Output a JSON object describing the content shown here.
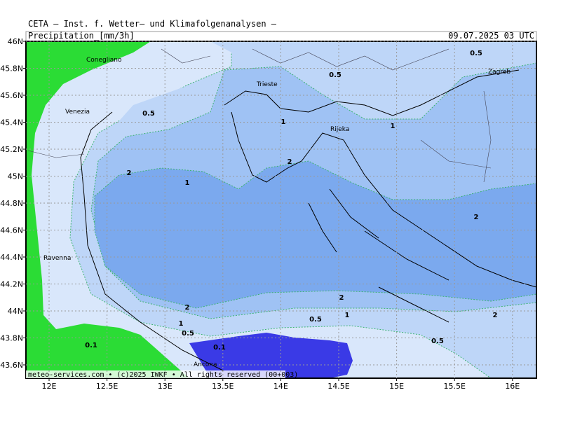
{
  "header": {
    "title": "CETA – Inst. f. Wetter– und Klimafolgenanalysen –",
    "variable": "Precipitation_[mm/3h]",
    "valid_time": "09.07.2025 03 UTC"
  },
  "map": {
    "lat_ticks": [
      {
        "value": 46,
        "label": "46N"
      },
      {
        "value": 45.8,
        "label": "45.8N"
      },
      {
        "value": 45.6,
        "label": "45.6N"
      },
      {
        "value": 45.4,
        "label": "45.4N"
      },
      {
        "value": 45.2,
        "label": "45.2N"
      },
      {
        "value": 45,
        "label": "45N"
      },
      {
        "value": 44.8,
        "label": "44.8N"
      },
      {
        "value": 44.6,
        "label": "44.6N"
      },
      {
        "value": 44.4,
        "label": "44.4N"
      },
      {
        "value": 44.2,
        "label": "44.2N"
      },
      {
        "value": 44,
        "label": "44N"
      },
      {
        "value": 43.8,
        "label": "43.8N"
      },
      {
        "value": 43.6,
        "label": "43.6N"
      }
    ],
    "lon_ticks": [
      {
        "value": 12,
        "label": "12E"
      },
      {
        "value": 12.5,
        "label": "12.5E"
      },
      {
        "value": 13,
        "label": "13E"
      },
      {
        "value": 13.5,
        "label": "13.5E"
      },
      {
        "value": 14,
        "label": "14E"
      },
      {
        "value": 14.5,
        "label": "14.5E"
      },
      {
        "value": 15,
        "label": "15E"
      },
      {
        "value": 15.5,
        "label": "15.5E"
      },
      {
        "value": 16,
        "label": "16E"
      }
    ],
    "cities": [
      "Conegliano",
      "Venezia",
      "Trieste",
      "Zagreb",
      "Rijeka",
      "Ravenna",
      "Ancona"
    ],
    "contour_labels": [
      "0.5",
      "0.5",
      "0.5",
      "1",
      "1",
      "1",
      "1",
      "1",
      "2",
      "2",
      "2",
      "2",
      "2",
      "2",
      "0.5",
      "0.5",
      "0.5",
      "0.1",
      "0.1"
    ],
    "footer": "meteo-services.com • (c)2025 IWKF • All rights reserved (00+003)"
  }
}
